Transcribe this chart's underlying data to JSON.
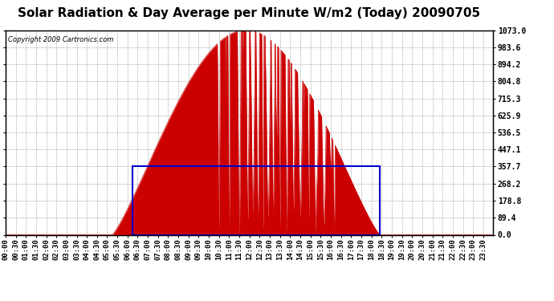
{
  "title": "Solar Radiation & Day Average per Minute W/m2 (Today) 20090705",
  "copyright": "Copyright 2009 Cartronics.com",
  "background_color": "#ffffff",
  "plot_bg_color": "#ffffff",
  "grid_color": "#888888",
  "fill_color": "#cc0000",
  "blue_rect_color": "#0000cc",
  "ylim": [
    0,
    1073.0
  ],
  "yticks": [
    0.0,
    89.4,
    178.8,
    268.2,
    357.7,
    447.1,
    536.5,
    625.9,
    715.3,
    804.8,
    894.2,
    983.6,
    1073.0
  ],
  "day_average": 357.7,
  "title_fontsize": 11,
  "copyright_fontsize": 6,
  "tick_fontsize": 6.5
}
